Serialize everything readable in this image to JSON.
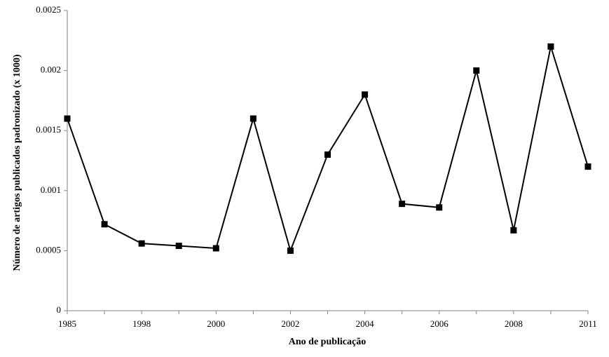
{
  "chart_data": {
    "type": "line",
    "xlabel": "Ano de publicação",
    "ylabel": "Número de artigos publicados padronizado (x 1000)",
    "categories": [
      "1985",
      null,
      "1998",
      null,
      "2000",
      null,
      "2002",
      null,
      "2004",
      null,
      "2006",
      null,
      "2008",
      null,
      "2011"
    ],
    "series": [
      {
        "color": "#000000",
        "values": [
          0.0016,
          0.00072,
          0.00056,
          0.00054,
          0.00052,
          0.0016,
          0.0005,
          0.0013,
          0.0018,
          0.00089,
          0.00086,
          0.002,
          0.00067,
          0.0022,
          0.0012
        ]
      }
    ],
    "ylim": [
      0,
      0.0025
    ],
    "yticks": [
      0,
      0.0005,
      0.001,
      0.0015,
      0.002,
      0.0025
    ],
    "grid": false
  }
}
